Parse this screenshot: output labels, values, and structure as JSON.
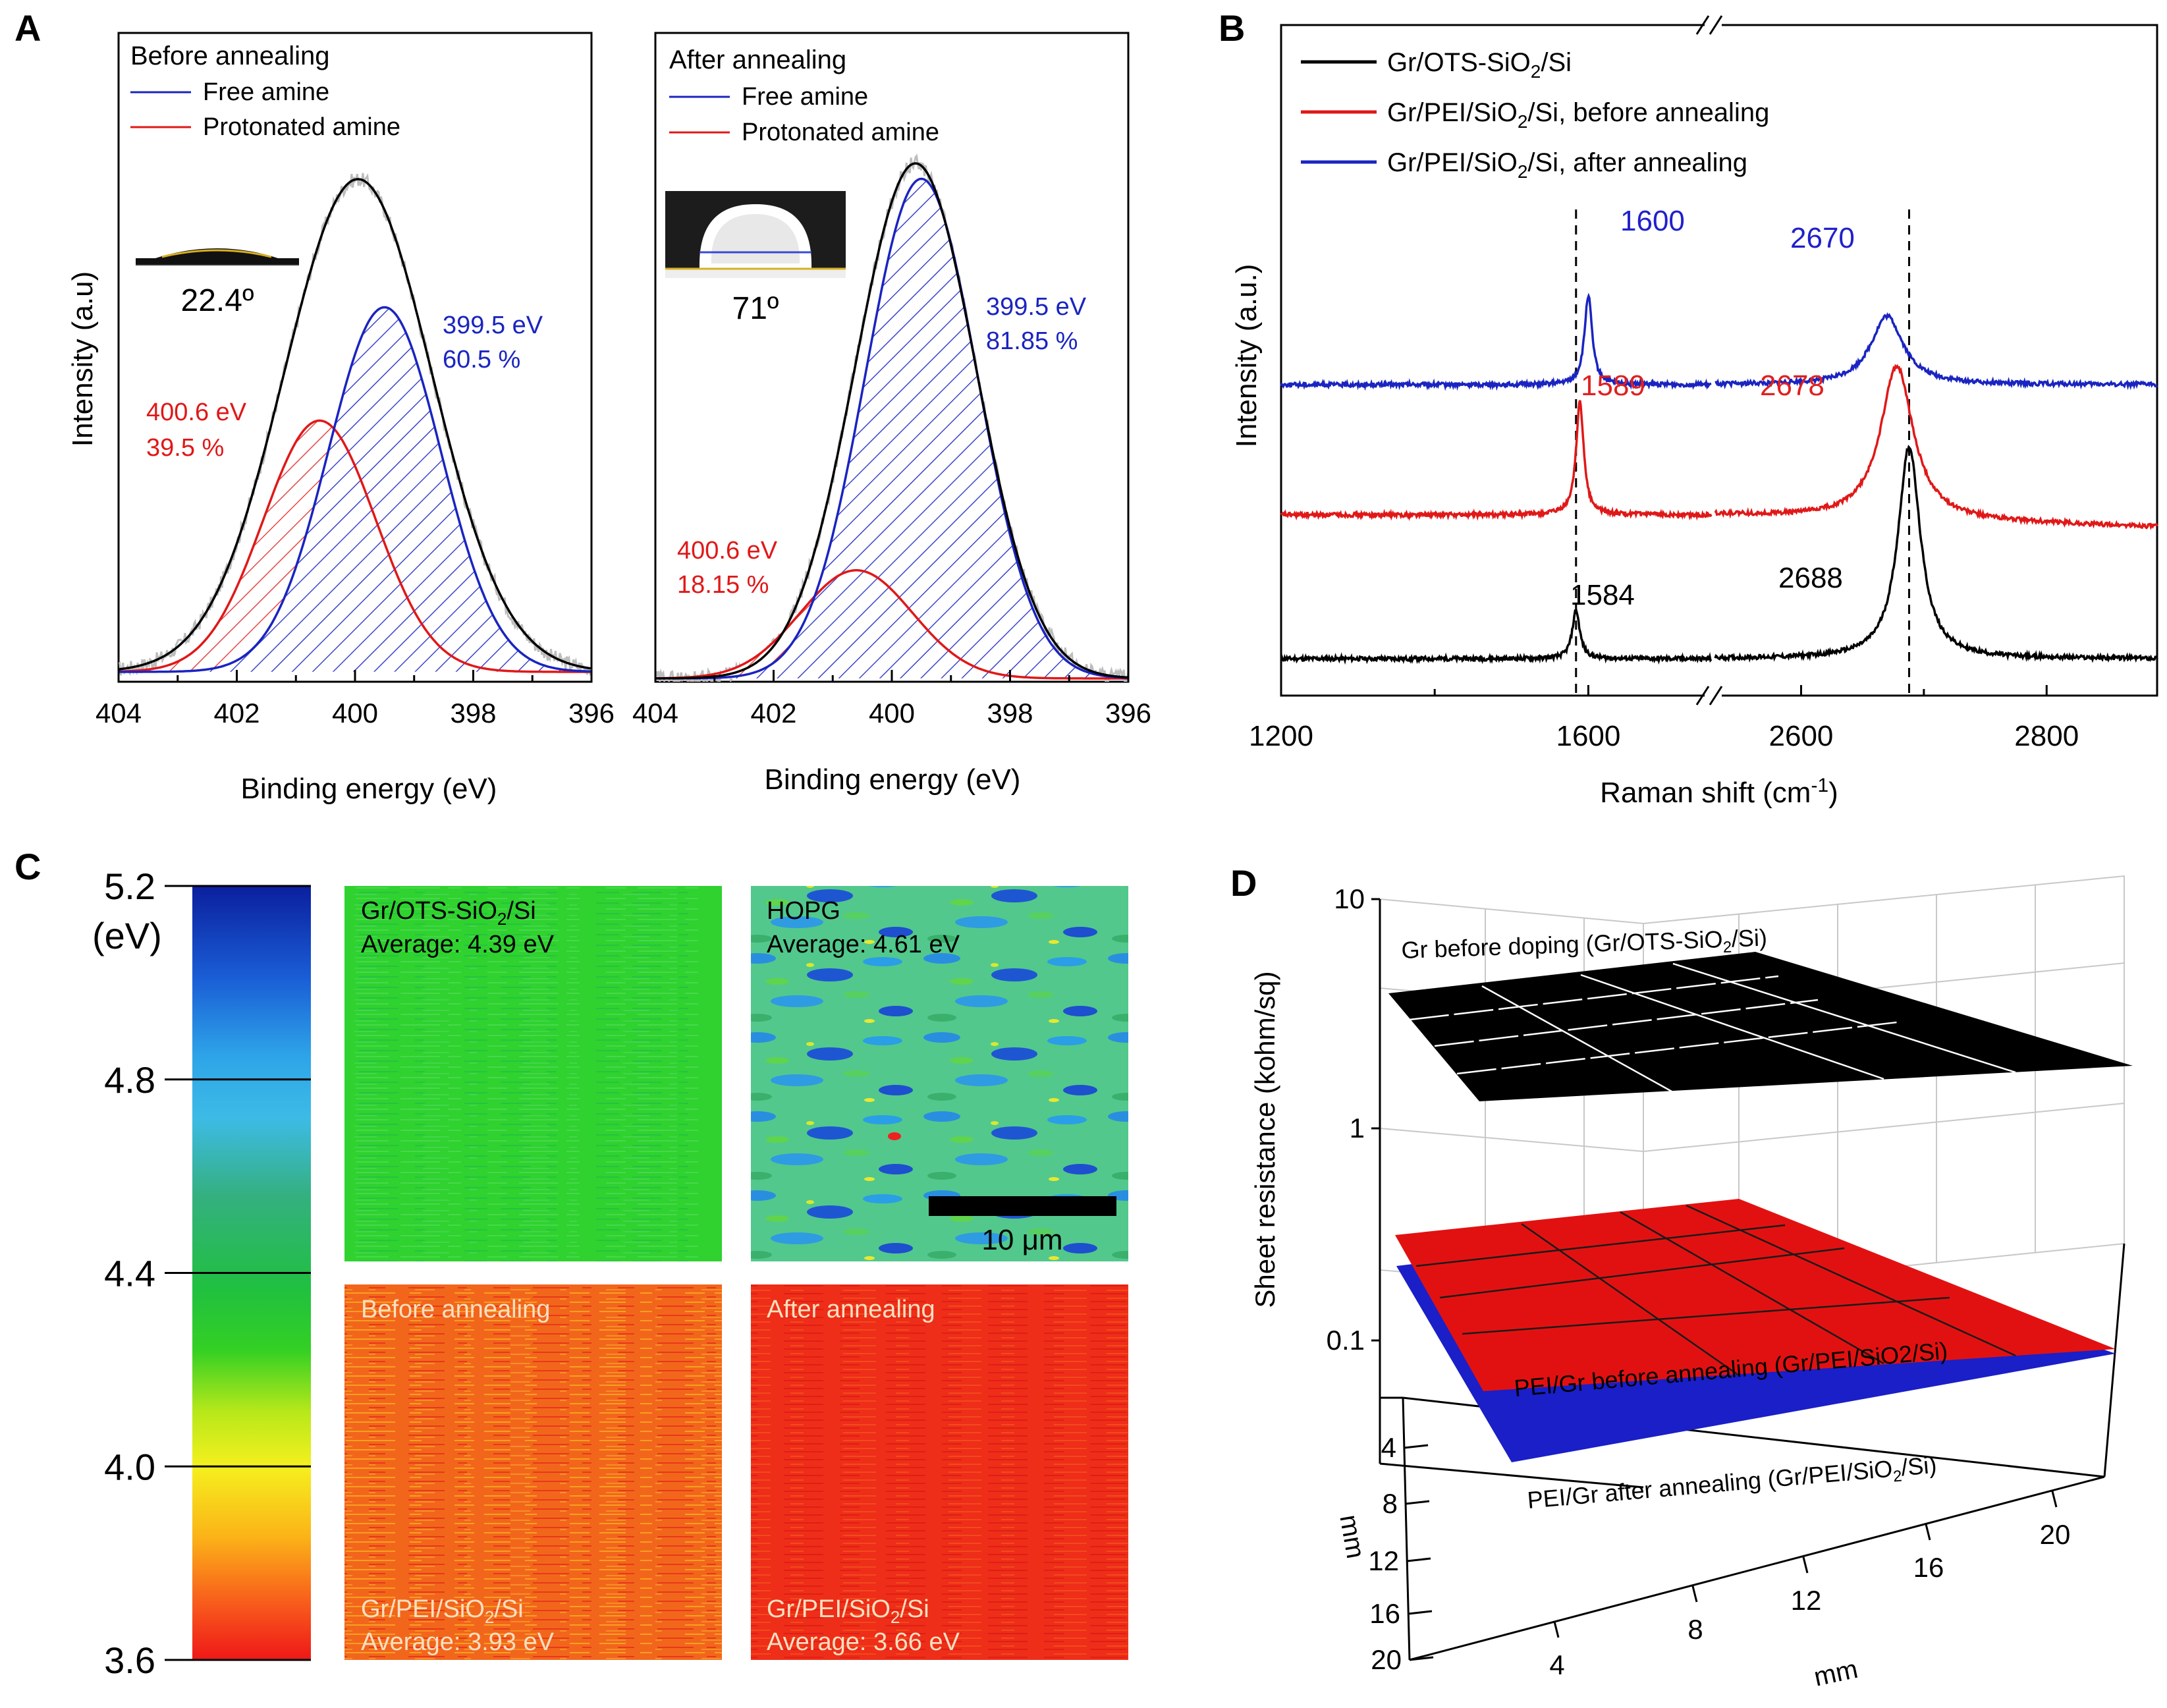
{
  "figure": {
    "panel_labels": [
      "A",
      "B",
      "C",
      "D"
    ],
    "palette": {
      "black": "#000000",
      "red": "#e01818",
      "blue": "#1a24c0",
      "gray": "#bdbdbd",
      "peak_blue": "#2020cc",
      "peak_red": "#e02020"
    }
  },
  "chart_data": [
    {
      "id": "A1",
      "type": "line",
      "title": "Before annealing",
      "xlabel": "Binding energy (eV)",
      "ylabel": "Intensity (a.u)",
      "xlim": [
        404,
        396
      ],
      "x_ticks": [
        404,
        402,
        400,
        398,
        396
      ],
      "legend": [
        "Free amine",
        "Protonated amine"
      ],
      "series": [
        {
          "name": "Envelope",
          "center": 399.95,
          "amplitude": 1.0,
          "sigma": 1.25,
          "color": "#000000"
        },
        {
          "name": "Free amine",
          "center": 399.5,
          "amplitude": 0.74,
          "sigma": 0.95,
          "color": "#1a24c0"
        },
        {
          "name": "Protonated amine",
          "center": 400.6,
          "amplitude": 0.51,
          "sigma": 0.95,
          "color": "#e01818"
        }
      ],
      "annotations": [
        {
          "lines": [
            "399.5 eV",
            "60.5 %"
          ],
          "color": "#1a24c0"
        },
        {
          "lines": [
            "400.6 eV",
            "39.5 %"
          ],
          "color": "#e01818"
        }
      ],
      "inset": {
        "contact_angle": "22.4º"
      }
    },
    {
      "id": "A2",
      "type": "line",
      "title": "After annealing",
      "xlabel": "Binding energy (eV)",
      "xlim": [
        404,
        396
      ],
      "x_ticks": [
        404,
        402,
        400,
        398,
        396
      ],
      "legend": [
        "Free amine",
        "Protonated amine"
      ],
      "series": [
        {
          "name": "Envelope",
          "center": 399.6,
          "amplitude": 1.0,
          "sigma": 1.02,
          "color": "#000000"
        },
        {
          "name": "Free amine",
          "center": 399.5,
          "amplitude": 0.97,
          "sigma": 0.95,
          "color": "#1a24c0"
        },
        {
          "name": "Protonated amine",
          "center": 400.6,
          "amplitude": 0.21,
          "sigma": 0.95,
          "color": "#e01818"
        }
      ],
      "annotations": [
        {
          "lines": [
            "399.5 eV",
            "81.85 %"
          ],
          "color": "#1a24c0"
        },
        {
          "lines": [
            "400.6 eV",
            "18.15 %"
          ],
          "color": "#e01818"
        }
      ],
      "inset": {
        "contact_angle": "71º"
      }
    },
    {
      "id": "B",
      "type": "line",
      "xlabel": "Raman shift (cm",
      "xlabel_sup": "-1",
      "xlabel_end": ")",
      "ylabel": "Intensity (a.u.)",
      "x_ticks_left": [
        1200,
        1600
      ],
      "x_ticks_right": [
        2600,
        2800
      ],
      "xlim_left": [
        1200,
        1760
      ],
      "xlim_right": [
        2530,
        2890
      ],
      "legend": [
        {
          "pre": "Gr/OTS-SiO",
          "sub": "2",
          "post": "/Si",
          "color": "#000000"
        },
        {
          "pre": "Gr/PEI/SiO",
          "sub": "2",
          "post": "/Si, before annealing",
          "color": "#e01818"
        },
        {
          "pre": "Gr/PEI/SiO",
          "sub": "2",
          "post": "/Si, after annealing",
          "color": "#1a24c0"
        }
      ],
      "series": [
        {
          "name": "Gr/OTS-SiO2/Si",
          "color": "#000000",
          "G": 1584,
          "G_height": 0.14,
          "twoD": 2688,
          "twoD_height": 0.62,
          "baseline": 0.0
        },
        {
          "name": "Gr/PEI/SiO2/Si, before annealing",
          "color": "#e01818",
          "G": 1589,
          "G_height": 0.33,
          "twoD": 2678,
          "twoD_height": 0.45,
          "baseline": 0.42
        },
        {
          "name": "Gr/PEI/SiO2/Si, after annealing",
          "color": "#1a24c0",
          "G": 1600,
          "G_height": 0.26,
          "twoD": 2670,
          "twoD_height": 0.2,
          "baseline": 0.8
        }
      ],
      "peak_labels": [
        "1600",
        "2670",
        "1589",
        "2678",
        "1584",
        "2688"
      ],
      "dashed_lines": [
        1584,
        2688
      ]
    },
    {
      "id": "C",
      "type": "heatmap",
      "colorbar": {
        "unit": "(eV)",
        "ticks": [
          "5.2",
          "4.8",
          "4.4",
          "4.0",
          "3.6"
        ],
        "range": [
          3.6,
          5.2
        ]
      },
      "maps": [
        {
          "title_pre": "Gr/OTS-SiO",
          "title_sub": "2",
          "title_post": "/Si",
          "average": "Average: 4.39 eV",
          "value": 4.39
        },
        {
          "title_pre": "HOPG",
          "title_sub": "",
          "title_post": "",
          "average": "Average: 4.61 eV",
          "value": 4.61
        },
        {
          "title_pre": "Before annealing",
          "title_sub": "",
          "title_post": "",
          "sample_pre": "Gr/PEI/SiO",
          "sample_sub": "2",
          "sample_post": "/Si",
          "average": "Average: 3.93 eV",
          "value": 3.93
        },
        {
          "title_pre": "After annealing",
          "title_sub": "",
          "title_post": "",
          "sample_pre": "Gr/PEI/SiO",
          "sample_sub": "2",
          "sample_post": "/Si",
          "average": "Average: 3.66 eV",
          "value": 3.66
        }
      ],
      "scalebar": "10 μm"
    },
    {
      "id": "D",
      "type": "surface3d",
      "zlabel": "Sheet resistance (kohm/sq)",
      "z_scale": "log",
      "z_ticks": [
        "10",
        "1",
        "0.1"
      ],
      "x_label": "mm",
      "y_label": "mm",
      "x_ticks": [
        "4",
        "8",
        "12",
        "16",
        "20"
      ],
      "y_ticks": [
        "4",
        "8",
        "12",
        "16",
        "20"
      ],
      "surfaces": [
        {
          "label_pre": "Gr before doping (Gr/OTS-SiO",
          "label_sub": "2",
          "label_post": "/Si)",
          "color": "#000000",
          "approx_kohm_sq": 3.4
        },
        {
          "label_pre": "PEI/Gr before annealing (Gr/PEI/SiO2/Si)",
          "label_sub": "",
          "label_post": "",
          "color": "#e01818",
          "approx_kohm_sq": 0.2
        },
        {
          "label_pre": "PEI/Gr after annealing (Gr/PEI/SiO",
          "label_sub": "2",
          "label_post": "/Si)",
          "color": "#1a24c0",
          "approx_kohm_sq": 0.15
        }
      ]
    }
  ]
}
